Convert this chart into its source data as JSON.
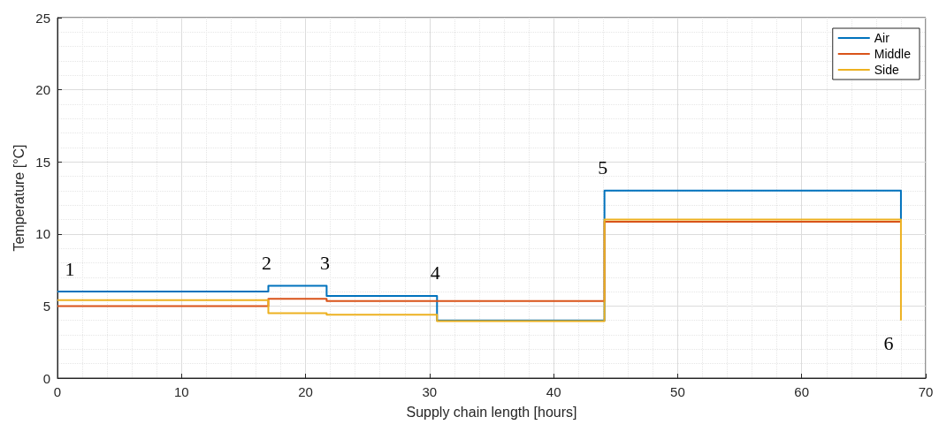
{
  "chart_data": {
    "type": "step",
    "xlabel": "Supply chain length [hours]",
    "ylabel": "Temperature [°C]",
    "x": [
      0,
      17,
      21.7,
      30.6,
      44.1,
      68
    ],
    "series": [
      {
        "name": "Air",
        "color": "#0072bd",
        "values": [
          6,
          6.4,
          5.7,
          4.0,
          13,
          11
        ]
      },
      {
        "name": "Middle",
        "color": "#d95319",
        "values": [
          5,
          5.5,
          5.35,
          5.35,
          10.85,
          10.85
        ]
      },
      {
        "name": "Side",
        "color": "#edb120",
        "values": [
          5.4,
          4.5,
          4.4,
          3.95,
          11,
          4
        ]
      }
    ],
    "xlim": [
      0,
      70
    ],
    "xticks": [
      0,
      10,
      20,
      30,
      40,
      50,
      60,
      70
    ],
    "ylim": [
      0,
      25
    ],
    "yticks": [
      0,
      5,
      10,
      15,
      20,
      25
    ],
    "grid": true,
    "legend": "top right",
    "marker": "none",
    "line_style": "solid",
    "annotations": [
      "1",
      "2",
      "3",
      "4",
      "5",
      "6"
    ]
  }
}
